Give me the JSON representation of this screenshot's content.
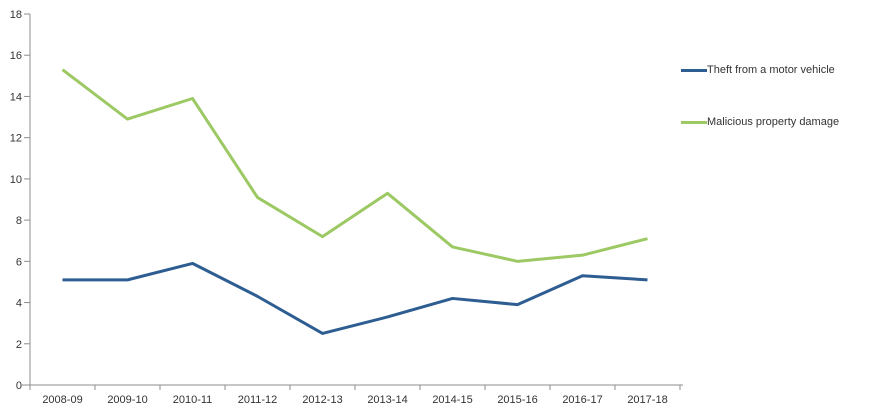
{
  "chart_data": {
    "type": "line",
    "title": "",
    "xlabel": "",
    "ylabel": "",
    "categories": [
      "2008-09",
      "2009-10",
      "2010-11",
      "2011-12",
      "2012-13",
      "2013-14",
      "2014-15",
      "2015-16",
      "2016-17",
      "2017-18"
    ],
    "series": [
      {
        "name": "Theft from a motor vehicle",
        "color": "#2E5D92",
        "values": [
          5.1,
          5.1,
          5.9,
          4.3,
          2.5,
          3.3,
          4.2,
          3.9,
          5.3,
          5.1
        ]
      },
      {
        "name": "Malicious property damage",
        "color": "#9CC963",
        "values": [
          15.3,
          12.9,
          13.9,
          9.1,
          7.2,
          9.3,
          6.7,
          6.0,
          6.3,
          7.1
        ]
      }
    ],
    "ylim": [
      0,
      18
    ],
    "y_ticks": [
      0,
      2,
      4,
      6,
      8,
      10,
      12,
      14,
      16,
      18
    ],
    "grid": "off",
    "legend_position": "right"
  },
  "axes": {
    "line_color": "#8C8C8C",
    "label_color": "#333333"
  }
}
